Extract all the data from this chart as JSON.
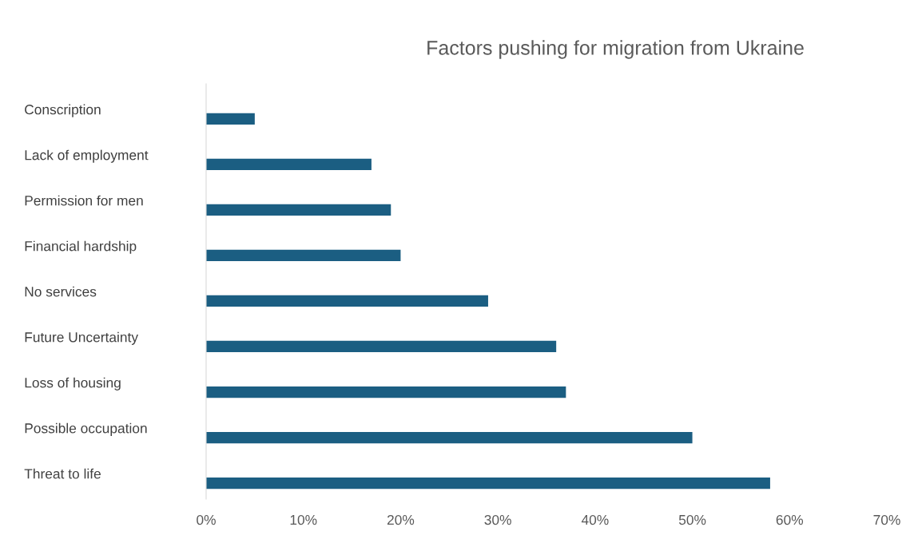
{
  "chart_data": {
    "type": "bar",
    "orientation": "horizontal",
    "title": "Factors pushing for migration from Ukraine",
    "categories": [
      "Conscription",
      "Lack of employment",
      "Permission for men",
      "Financial hardship",
      "No services",
      "Future Uncertainty",
      "Loss of housing",
      "Possible occupation",
      "Threat to life"
    ],
    "values": [
      5,
      17,
      19,
      20,
      29,
      36,
      37,
      50,
      58
    ],
    "color": "#1b5e82",
    "xlim": [
      0,
      70
    ],
    "xticks": [
      {
        "value": 0,
        "label": "0%"
      },
      {
        "value": 10,
        "label": "10%"
      },
      {
        "value": 20,
        "label": "20%"
      },
      {
        "value": 30,
        "label": "30%"
      },
      {
        "value": 40,
        "label": "40%"
      },
      {
        "value": 50,
        "label": "50%"
      },
      {
        "value": 60,
        "label": "60%"
      },
      {
        "value": 70,
        "label": "70%"
      }
    ],
    "grid": false,
    "legend": false
  }
}
